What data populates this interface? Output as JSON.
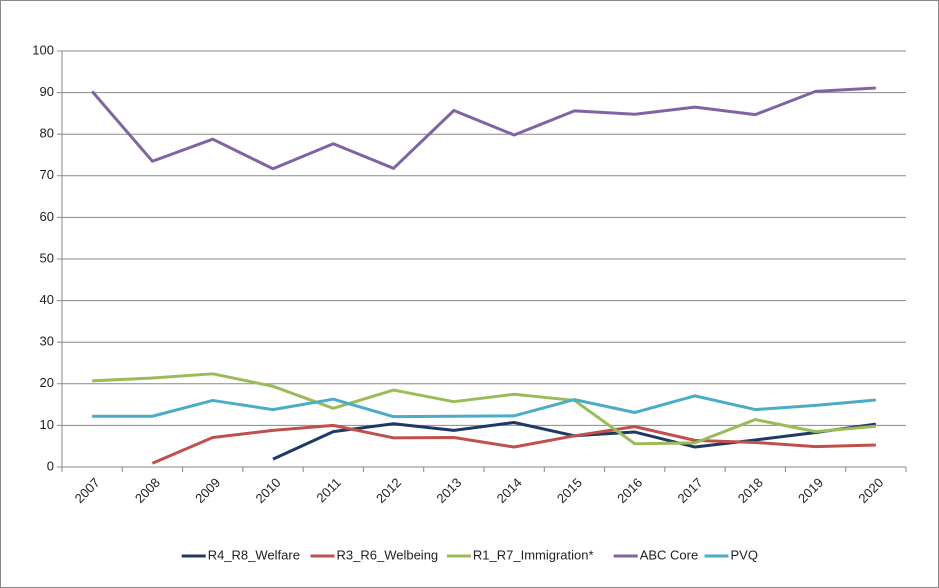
{
  "chart_data": {
    "type": "line",
    "categories": [
      "2007",
      "2008",
      "2009",
      "2010",
      "2011",
      "2012",
      "2013",
      "2014",
      "2015",
      "2016",
      "2017",
      "2018",
      "2019",
      "2020"
    ],
    "series": [
      {
        "name": "R4_R8_Welfare",
        "color": "#1f3864",
        "values": [
          null,
          null,
          null,
          1.9,
          8.5,
          10.4,
          8.8,
          10.7,
          7.5,
          8.4,
          4.8,
          6.5,
          8.3,
          10.3
        ]
      },
      {
        "name": "R3_R6_Welbeing",
        "color": "#c0504d",
        "values": [
          null,
          0.9,
          7.1,
          8.8,
          10.0,
          7.0,
          7.1,
          4.8,
          7.5,
          9.7,
          6.4,
          5.9,
          4.9,
          5.3
        ]
      },
      {
        "name": "R1_R7_Immigration*",
        "color": "#9bbb59",
        "values": [
          20.7,
          21.4,
          22.4,
          19.4,
          14.1,
          18.5,
          15.7,
          17.5,
          16.0,
          5.6,
          5.8,
          11.4,
          8.5,
          9.8
        ]
      },
      {
        "name": "ABC Core",
        "color": "#8064a2",
        "values": [
          90.3,
          73.5,
          78.8,
          71.7,
          77.7,
          71.8,
          85.7,
          79.8,
          85.6,
          84.8,
          86.5,
          84.7,
          90.3,
          91.1
        ]
      },
      {
        "name": "PVQ",
        "color": "#4bacc6",
        "values": [
          12.2,
          12.2,
          16.0,
          13.8,
          16.3,
          12.1,
          12.2,
          12.3,
          16.2,
          13.1,
          17.1,
          13.8,
          14.8,
          16.1
        ]
      }
    ],
    "ylim": [
      0,
      100
    ],
    "yticks": [
      0,
      10,
      20,
      30,
      40,
      50,
      60,
      70,
      80,
      90,
      100
    ],
    "grid": true,
    "legend": "bottom"
  }
}
